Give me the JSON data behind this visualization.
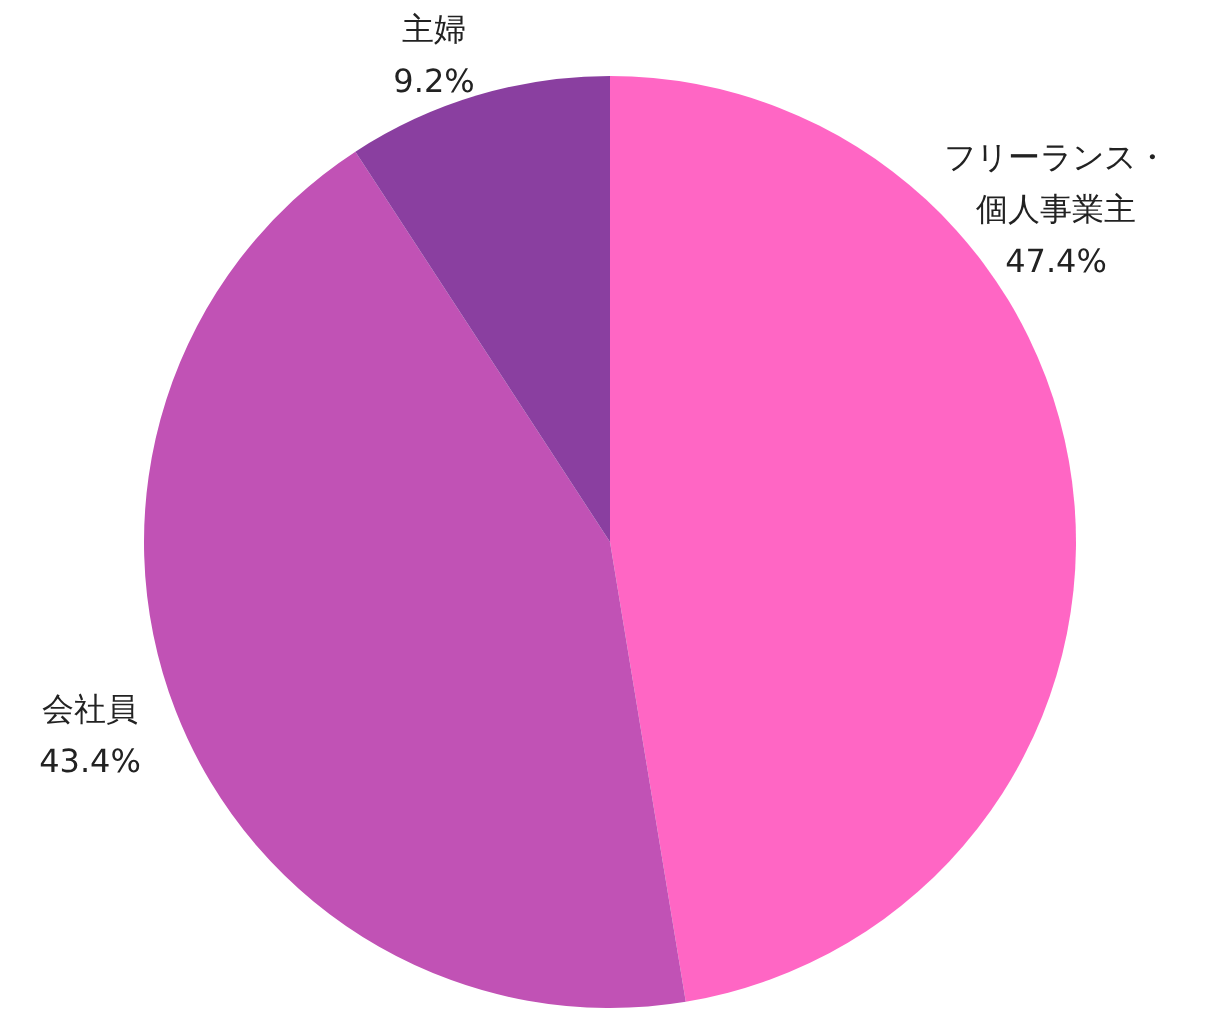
{
  "chart_data": {
    "type": "pie",
    "categories": [
      "フリーランス・個人事業主",
      "会社員",
      "主婦"
    ],
    "values": [
      47.4,
      43.4,
      9.2
    ],
    "colors": [
      "#ff66c4",
      "#c152b5",
      "#8a3fa0"
    ],
    "value_labels": [
      "47.4%",
      "43.4%",
      "9.2%"
    ]
  }
}
